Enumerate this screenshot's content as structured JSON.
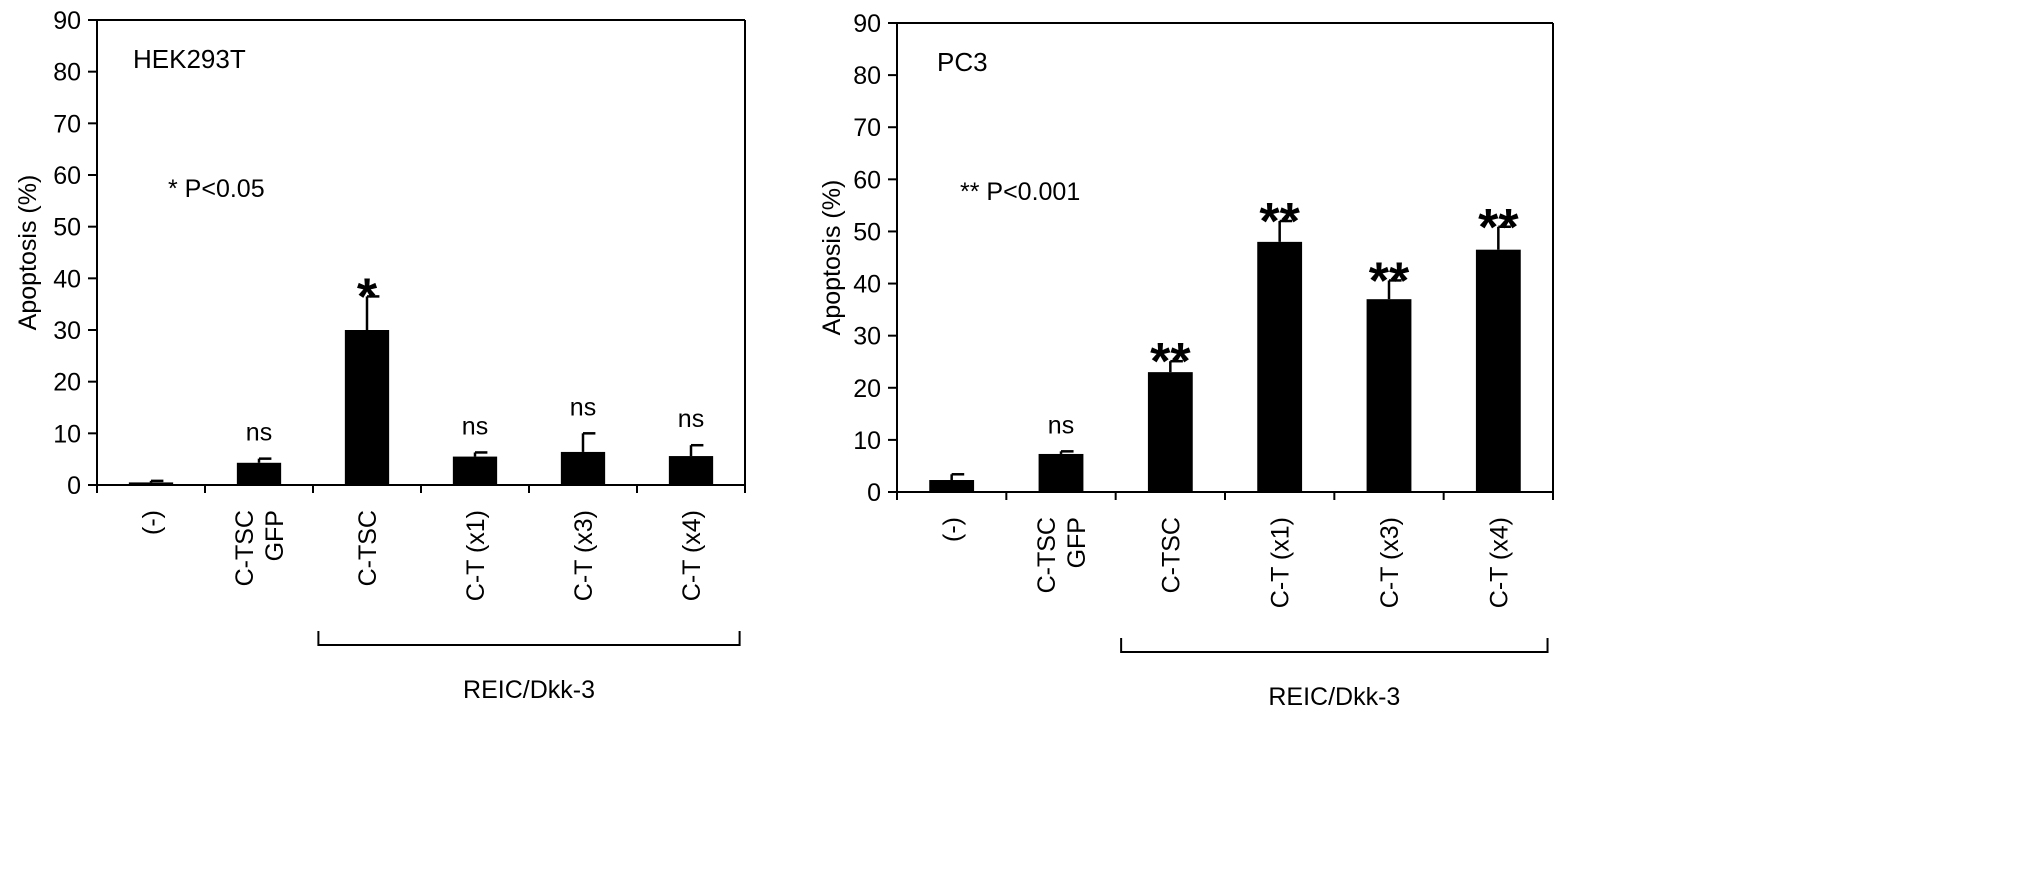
{
  "figure": {
    "group_label": "REIC/Dkk-3"
  },
  "chart_data": [
    {
      "type": "bar",
      "panel_label": "HEK293T",
      "annotation": "* P<0.05",
      "ylabel": "Apoptosis (%)",
      "xlabel": "",
      "ylim": [
        0,
        90
      ],
      "yticks": [
        0,
        10,
        20,
        30,
        40,
        50,
        60,
        70,
        80,
        90
      ],
      "grid": false,
      "categories": [
        [
          "(-)"
        ],
        [
          "C-TSC",
          "GFP"
        ],
        [
          "C-TSC"
        ],
        [
          "C-T (x1)"
        ],
        [
          "C-T (x3)"
        ],
        [
          "C-T (x4)"
        ]
      ],
      "values": [
        0.5,
        4.3,
        30,
        5.5,
        6.4,
        5.6
      ],
      "errors": [
        0.3,
        0.8,
        6.5,
        0.8,
        3.6,
        2.1
      ],
      "significance": [
        "",
        "ns",
        "*",
        "ns",
        "ns",
        "ns"
      ],
      "group_bracket": {
        "label": "REIC/Dkk-3",
        "from": 2,
        "to": 5
      }
    },
    {
      "type": "bar",
      "panel_label": "PC3",
      "annotation": "** P<0.001",
      "ylabel": "Apoptosis (%)",
      "xlabel": "",
      "ylim": [
        0,
        90
      ],
      "yticks": [
        0,
        10,
        20,
        30,
        40,
        50,
        60,
        70,
        80,
        90
      ],
      "grid": false,
      "categories": [
        [
          "(-)"
        ],
        [
          "C-TSC",
          "GFP"
        ],
        [
          "C-TSC"
        ],
        [
          "C-T (x1)"
        ],
        [
          "C-T (x3)"
        ],
        [
          "C-T (x4)"
        ]
      ],
      "values": [
        2.3,
        7.3,
        23,
        48,
        37,
        46.5
      ],
      "errors": [
        1.1,
        0.5,
        2.1,
        4,
        3.6,
        4.4
      ],
      "significance": [
        "",
        "ns",
        "**",
        "**",
        "**",
        "**"
      ],
      "group_bracket": {
        "label": "REIC/Dkk-3",
        "from": 2,
        "to": 5
      }
    }
  ]
}
